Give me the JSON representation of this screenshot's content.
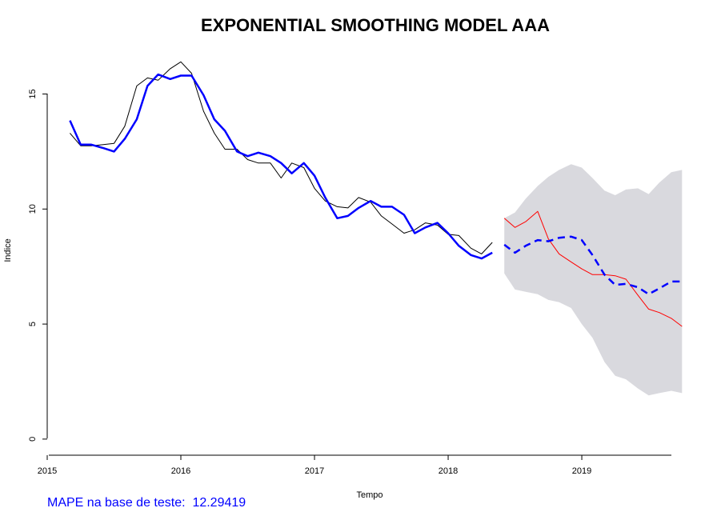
{
  "chart_data": {
    "type": "line",
    "title": "EXPONENTIAL SMOOTHING MODEL AAA",
    "xlabel": "Tempo",
    "ylabel": "Indice",
    "xlim": [
      2015,
      2019.82
    ],
    "ylim": [
      -0.7,
      17.0
    ],
    "x_ticks": [
      2015,
      2016,
      2017,
      2018,
      2019
    ],
    "y_ticks": [
      0,
      5,
      10,
      15
    ],
    "grid": false,
    "legend": "none",
    "colors": {
      "actual": "#000000",
      "fitted": "#0000ff",
      "test": "#ff0000",
      "interval": "#d9d9de"
    },
    "series": [
      {
        "key": "actual",
        "style": "solid-thin",
        "x": [
          2015.17,
          2015.25,
          2015.33,
          2015.42,
          2015.5,
          2015.58,
          2015.67,
          2015.75,
          2015.83,
          2015.92,
          2016.0,
          2016.08,
          2016.17,
          2016.25,
          2016.33,
          2016.42,
          2016.5,
          2016.58,
          2016.67,
          2016.75,
          2016.83,
          2016.92,
          2017.0,
          2017.08,
          2017.17,
          2017.25,
          2017.33,
          2017.42,
          2017.5,
          2017.58,
          2017.67,
          2017.75,
          2017.83,
          2017.92,
          2018.0,
          2018.08,
          2018.17,
          2018.25,
          2018.33
        ],
        "y": [
          13.3,
          12.75,
          12.75,
          12.8,
          12.85,
          13.6,
          15.35,
          15.7,
          15.6,
          16.1,
          16.4,
          15.9,
          14.25,
          13.3,
          12.6,
          12.6,
          12.15,
          12.0,
          12.0,
          11.35,
          12.0,
          11.8,
          10.9,
          10.35,
          10.1,
          10.05,
          10.5,
          10.3,
          9.7,
          9.35,
          8.95,
          9.1,
          9.4,
          9.3,
          8.9,
          8.85,
          8.3,
          8.05,
          8.55
        ]
      },
      {
        "key": "fitted",
        "style": "solid-thick",
        "x": [
          2015.17,
          2015.25,
          2015.33,
          2015.42,
          2015.5,
          2015.58,
          2015.67,
          2015.75,
          2015.83,
          2015.92,
          2016.0,
          2016.08,
          2016.17,
          2016.25,
          2016.33,
          2016.42,
          2016.5,
          2016.58,
          2016.67,
          2016.75,
          2016.83,
          2016.92,
          2017.0,
          2017.08,
          2017.17,
          2017.25,
          2017.33,
          2017.42,
          2017.5,
          2017.58,
          2017.67,
          2017.75,
          2017.83,
          2017.92,
          2018.0,
          2018.08,
          2018.17,
          2018.25,
          2018.33
        ],
        "y": [
          13.85,
          12.8,
          12.8,
          12.65,
          12.5,
          13.05,
          13.9,
          15.35,
          15.85,
          15.65,
          15.8,
          15.8,
          14.95,
          13.9,
          13.4,
          12.5,
          12.3,
          12.45,
          12.3,
          12.0,
          11.55,
          12.0,
          11.45,
          10.5,
          9.6,
          9.7,
          10.05,
          10.35,
          10.1,
          10.1,
          9.75,
          8.95,
          9.2,
          9.4,
          8.95,
          8.4,
          8.0,
          7.85,
          8.1
        ]
      },
      {
        "key": "forecast",
        "style": "dashed-thick",
        "x": [
          2018.42,
          2018.5,
          2018.58,
          2018.67,
          2018.75,
          2018.83,
          2018.92,
          2019.0,
          2019.08,
          2019.17,
          2019.25,
          2019.33,
          2019.42,
          2019.5,
          2019.58,
          2019.67,
          2019.75
        ],
        "y": [
          8.45,
          8.1,
          8.4,
          8.65,
          8.6,
          8.75,
          8.8,
          8.65,
          8.0,
          7.15,
          6.7,
          6.75,
          6.6,
          6.3,
          6.55,
          6.85,
          6.85
        ]
      },
      {
        "key": "test",
        "style": "solid-thin",
        "x": [
          2018.42,
          2018.5,
          2018.58,
          2018.67,
          2018.75,
          2018.83,
          2018.92,
          2019.0,
          2019.08,
          2019.17,
          2019.25,
          2019.33,
          2019.42,
          2019.5,
          2019.58,
          2019.67,
          2019.75
        ],
        "y": [
          9.6,
          9.2,
          9.45,
          9.9,
          8.7,
          8.05,
          7.7,
          7.4,
          7.15,
          7.15,
          7.1,
          6.95,
          6.25,
          5.65,
          5.5,
          5.25,
          4.9
        ]
      }
    ],
    "interval": {
      "x": [
        2018.42,
        2018.5,
        2018.58,
        2018.67,
        2018.75,
        2018.83,
        2018.92,
        2019.0,
        2019.08,
        2019.17,
        2019.25,
        2019.33,
        2019.42,
        2019.5,
        2019.58,
        2019.67,
        2019.75
      ],
      "upper": [
        9.6,
        9.85,
        10.45,
        11.0,
        11.4,
        11.7,
        11.95,
        11.8,
        11.35,
        10.8,
        10.6,
        10.85,
        10.9,
        10.65,
        11.15,
        11.6,
        11.7
      ],
      "lower": [
        7.2,
        6.5,
        6.4,
        6.3,
        6.05,
        5.95,
        5.7,
        5.0,
        4.4,
        3.35,
        2.75,
        2.6,
        2.2,
        1.9,
        2.0,
        2.1,
        2.0
      ]
    }
  },
  "footer": {
    "mape_text": "MAPE na base de teste:  12.29419"
  }
}
